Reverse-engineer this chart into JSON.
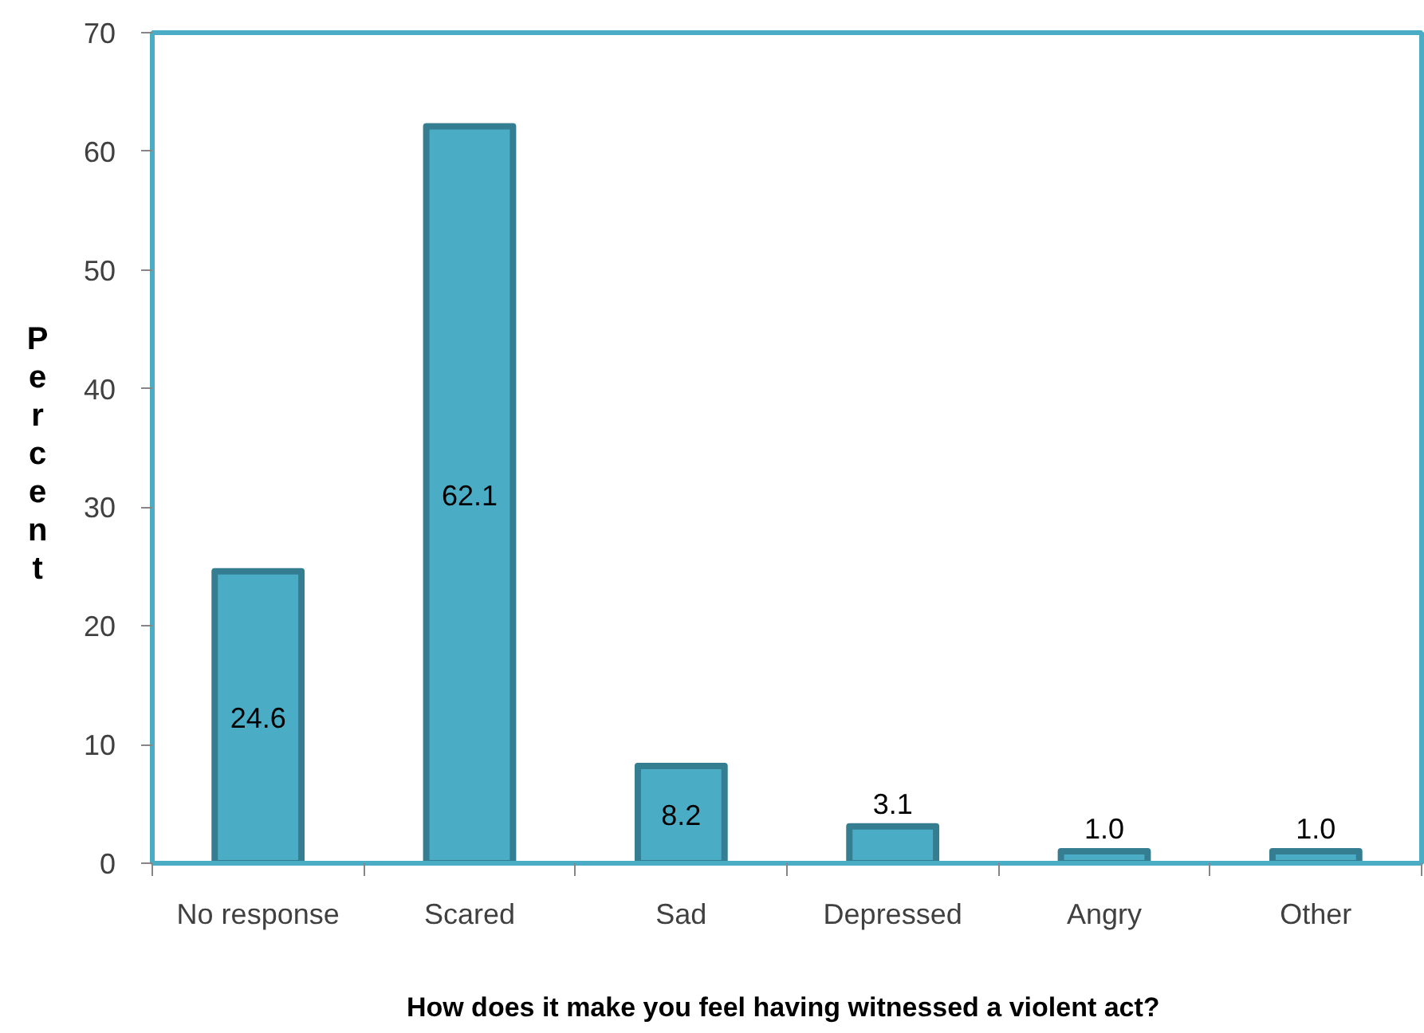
{
  "chart_data": {
    "type": "bar",
    "categories": [
      "No response",
      "Scared",
      "Sad",
      "Depressed",
      "Angry",
      "Other"
    ],
    "values": [
      24.6,
      62.1,
      8.2,
      3.1,
      1.0,
      1.0
    ],
    "color": "#4bacc6",
    "value_labels": [
      "24.6",
      "62.1",
      "8.2",
      "3.1",
      "1.0",
      "1.0"
    ],
    "ylim": [
      0,
      70
    ],
    "yticks": [
      0,
      10,
      20,
      30,
      40,
      50,
      60,
      70
    ],
    "ylabel": "Percent",
    "xlabel": "How  does it make you feel having witnessed a violent act?",
    "grid": false
  }
}
